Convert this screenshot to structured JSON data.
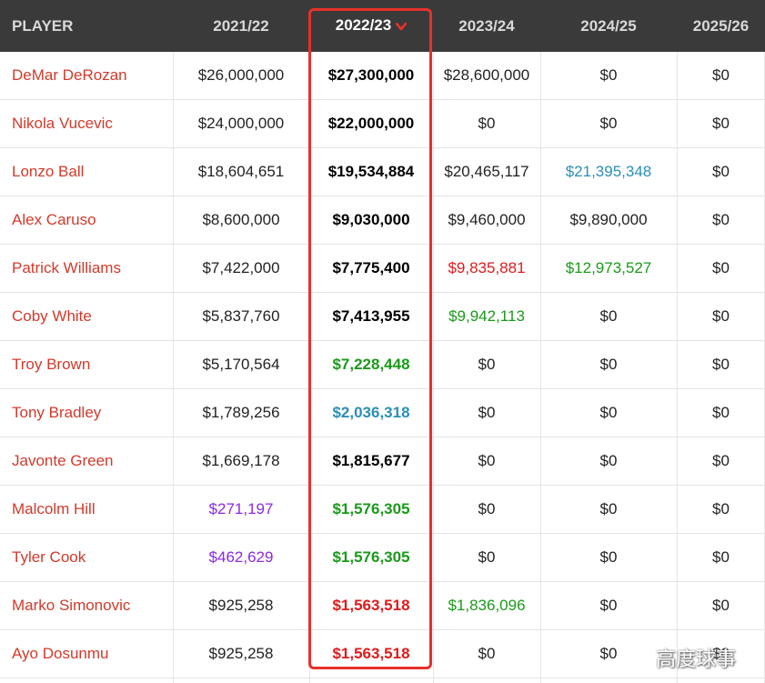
{
  "header": {
    "player": "PLAYER",
    "y1": "2021/22",
    "y2": "2022/23",
    "y3": "2023/24",
    "y4": "2024/25",
    "y5": "2025/26",
    "sort_icon": "chevron-down-icon"
  },
  "colors": {
    "name": "#d23a2b",
    "default": "#222222",
    "green": "#1a9a1a",
    "blue": "#2a8fb5",
    "purple": "#8a2be2",
    "red": "#e01b1b",
    "highlight_border": "#e8302a"
  },
  "rows": [
    {
      "player": "DeMar DeRozan",
      "y1": "$26,000,000",
      "y2": "$27,300,000",
      "y3": "$28,600,000",
      "y4": "$0",
      "y5": "$0",
      "c1": "default",
      "c2": "default",
      "c3": "default",
      "c4": "default"
    },
    {
      "player": "Nikola Vucevic",
      "y1": "$24,000,000",
      "y2": "$22,000,000",
      "y3": "$0",
      "y4": "$0",
      "y5": "$0",
      "c1": "default",
      "c2": "default",
      "c3": "default",
      "c4": "default"
    },
    {
      "player": "Lonzo Ball",
      "y1": "$18,604,651",
      "y2": "$19,534,884",
      "y3": "$20,465,117",
      "y4": "$21,395,348",
      "y5": "$0",
      "c1": "default",
      "c2": "default",
      "c3": "default",
      "c4": "blue"
    },
    {
      "player": "Alex Caruso",
      "y1": "$8,600,000",
      "y2": "$9,030,000",
      "y3": "$9,460,000",
      "y4": "$9,890,000",
      "y5": "$0",
      "c1": "default",
      "c2": "default",
      "c3": "default",
      "c4": "default"
    },
    {
      "player": "Patrick Williams",
      "y1": "$7,422,000",
      "y2": "$7,775,400",
      "y3": "$9,835,881",
      "y4": "$12,973,527",
      "y5": "$0",
      "c1": "default",
      "c2": "default",
      "c3": "red",
      "c4": "green"
    },
    {
      "player": "Coby White",
      "y1": "$5,837,760",
      "y2": "$7,413,955",
      "y3": "$9,942,113",
      "y4": "$0",
      "y5": "$0",
      "c1": "default",
      "c2": "default",
      "c3": "green",
      "c4": "default"
    },
    {
      "player": "Troy Brown",
      "y1": "$5,170,564",
      "y2": "$7,228,448",
      "y3": "$0",
      "y4": "$0",
      "y5": "$0",
      "c1": "default",
      "c2": "green",
      "c3": "default",
      "c4": "default"
    },
    {
      "player": "Tony Bradley",
      "y1": "$1,789,256",
      "y2": "$2,036,318",
      "y3": "$0",
      "y4": "$0",
      "y5": "$0",
      "c1": "default",
      "c2": "blue",
      "c3": "default",
      "c4": "default"
    },
    {
      "player": "Javonte Green",
      "y1": "$1,669,178",
      "y2": "$1,815,677",
      "y3": "$0",
      "y4": "$0",
      "y5": "$0",
      "c1": "default",
      "c2": "default",
      "c3": "default",
      "c4": "default"
    },
    {
      "player": "Malcolm Hill",
      "y1": "$271,197",
      "y2": "$1,576,305",
      "y3": "$0",
      "y4": "$0",
      "y5": "$0",
      "c1": "purple",
      "c2": "green",
      "c3": "default",
      "c4": "default"
    },
    {
      "player": "Tyler Cook",
      "y1": "$462,629",
      "y2": "$1,576,305",
      "y3": "$0",
      "y4": "$0",
      "y5": "$0",
      "c1": "purple",
      "c2": "green",
      "c3": "default",
      "c4": "default"
    },
    {
      "player": "Marko Simonovic",
      "y1": "$925,258",
      "y2": "$1,563,518",
      "y3": "$1,836,096",
      "y4": "$0",
      "y5": "$0",
      "c1": "default",
      "c2": "red",
      "c3": "green",
      "c4": "default"
    },
    {
      "player": "Ayo Dosunmu",
      "y1": "$925,258",
      "y2": "$1,563,518",
      "y3": "$0",
      "y4": "$0",
      "y5": "$0",
      "c1": "default",
      "c2": "red",
      "c3": "default",
      "c4": "default"
    }
  ],
  "watermark": "高度球事"
}
